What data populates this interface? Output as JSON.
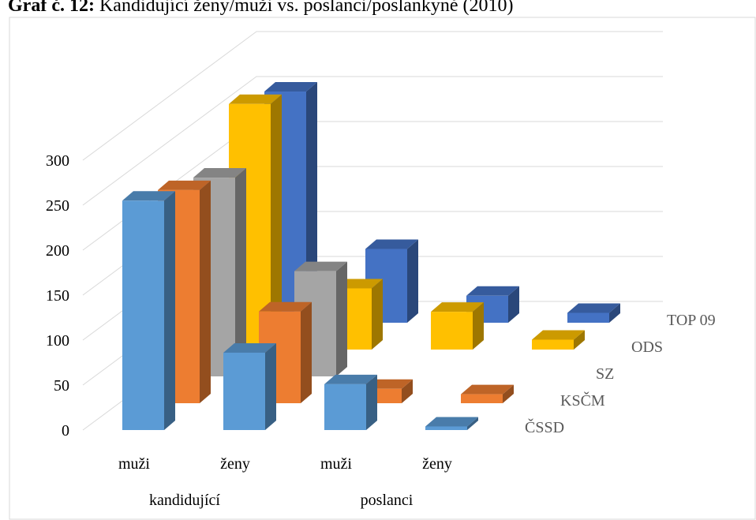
{
  "chart_data": {
    "type": "bar3d",
    "title": "Graf č. 12:",
    "subtitle": "Kandidující ženy/muži vs. poslanci/poslankyně (2010)",
    "categories": [
      "muži",
      "ženy",
      "muži",
      "ženy"
    ],
    "groups": [
      "kandidující",
      "poslanci"
    ],
    "series": [
      {
        "name": "ČSSD",
        "color": "#5b9bd5",
        "values": [
          255,
          86,
          51,
          4
        ]
      },
      {
        "name": "KSČM",
        "color": "#ed7d31",
        "values": [
          237,
          102,
          16,
          10
        ]
      },
      {
        "name": "SZ",
        "color": "#a5a5a5",
        "values": [
          221,
          117,
          0,
          0
        ]
      },
      {
        "name": "ODS",
        "color": "#ffc000",
        "values": [
          273,
          68,
          42,
          11
        ]
      },
      {
        "name": "TOP 09",
        "color": "#4472c4",
        "values": [
          257,
          82,
          30,
          11
        ]
      }
    ],
    "ylim": [
      0,
      300
    ],
    "yticks": [
      0,
      50,
      100,
      150,
      200,
      250,
      300
    ],
    "grid": true
  }
}
